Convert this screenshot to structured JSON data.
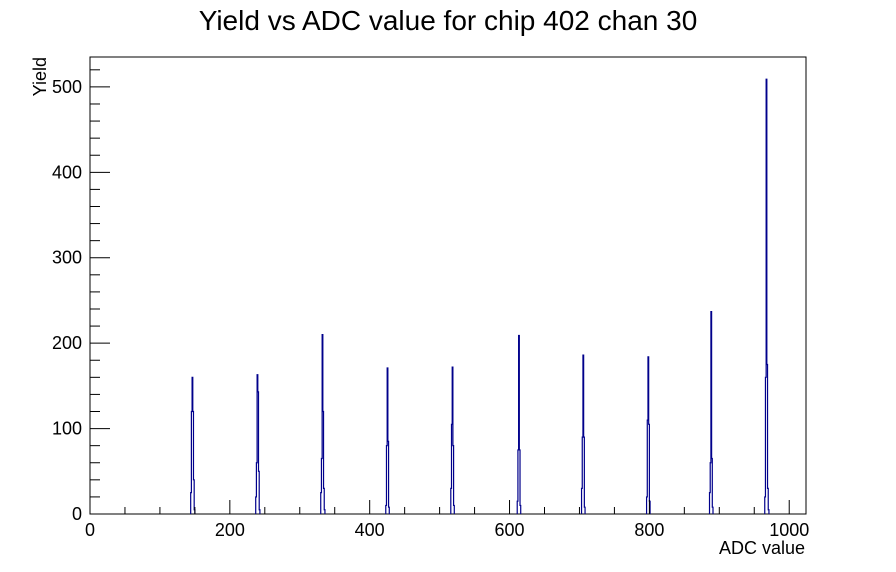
{
  "chart_data": {
    "type": "bar",
    "title": "Yield vs ADC value for chip 402 chan 30",
    "xlabel": "ADC value",
    "ylabel": "Yield",
    "xlim": [
      0,
      1024
    ],
    "ylim": [
      0,
      535
    ],
    "x_ticks": [
      0,
      200,
      400,
      600,
      800,
      1000
    ],
    "y_ticks": [
      0,
      100,
      200,
      300,
      400,
      500
    ],
    "grid": false,
    "legend": "none",
    "series": [
      {
        "color": "#00008b",
        "bins": [
          {
            "x": 144,
            "y": 25
          },
          {
            "x": 145,
            "y": 120
          },
          {
            "x": 146,
            "y": 160
          },
          {
            "x": 147,
            "y": 120
          },
          {
            "x": 148,
            "y": 40
          },
          {
            "x": 149,
            "y": 5
          },
          {
            "x": 237,
            "y": 20
          },
          {
            "x": 238,
            "y": 60
          },
          {
            "x": 239,
            "y": 163
          },
          {
            "x": 240,
            "y": 143
          },
          {
            "x": 241,
            "y": 50
          },
          {
            "x": 242,
            "y": 5
          },
          {
            "x": 330,
            "y": 25
          },
          {
            "x": 331,
            "y": 65
          },
          {
            "x": 332,
            "y": 210
          },
          {
            "x": 333,
            "y": 120
          },
          {
            "x": 334,
            "y": 30
          },
          {
            "x": 335,
            "y": 5
          },
          {
            "x": 423,
            "y": 10
          },
          {
            "x": 424,
            "y": 80
          },
          {
            "x": 425,
            "y": 171
          },
          {
            "x": 426,
            "y": 85
          },
          {
            "x": 427,
            "y": 8
          },
          {
            "x": 516,
            "y": 30
          },
          {
            "x": 517,
            "y": 105
          },
          {
            "x": 518,
            "y": 172
          },
          {
            "x": 519,
            "y": 80
          },
          {
            "x": 520,
            "y": 10
          },
          {
            "x": 611,
            "y": 15
          },
          {
            "x": 612,
            "y": 75
          },
          {
            "x": 613,
            "y": 209
          },
          {
            "x": 614,
            "y": 75
          },
          {
            "x": 615,
            "y": 10
          },
          {
            "x": 703,
            "y": 30
          },
          {
            "x": 704,
            "y": 90
          },
          {
            "x": 705,
            "y": 186
          },
          {
            "x": 706,
            "y": 90
          },
          {
            "x": 707,
            "y": 8
          },
          {
            "x": 796,
            "y": 20
          },
          {
            "x": 797,
            "y": 110
          },
          {
            "x": 798,
            "y": 184
          },
          {
            "x": 799,
            "y": 105
          },
          {
            "x": 800,
            "y": 15
          },
          {
            "x": 886,
            "y": 25
          },
          {
            "x": 887,
            "y": 60
          },
          {
            "x": 888,
            "y": 237
          },
          {
            "x": 889,
            "y": 65
          },
          {
            "x": 890,
            "y": 8
          },
          {
            "x": 965,
            "y": 20
          },
          {
            "x": 966,
            "y": 160
          },
          {
            "x": 967,
            "y": 509
          },
          {
            "x": 968,
            "y": 175
          },
          {
            "x": 969,
            "y": 30
          },
          {
            "x": 970,
            "y": 5
          }
        ]
      }
    ]
  }
}
